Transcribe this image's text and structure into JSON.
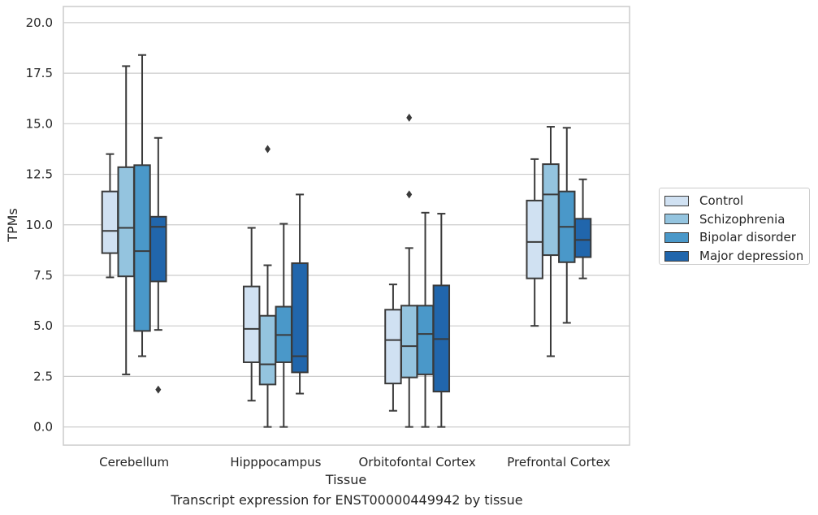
{
  "caption": "Transcript expression for ENST00000449942 by tissue",
  "chart_data": {
    "type": "boxplot",
    "xlabel": "Tissue",
    "ylabel": "TPMs",
    "ylim": [
      -0.9,
      20.8
    ],
    "yticks": [
      "0.0",
      "2.5",
      "5.0",
      "7.5",
      "10.0",
      "12.5",
      "15.0",
      "17.5",
      "20.0"
    ],
    "ytick_values": [
      0,
      2.5,
      5,
      7.5,
      10,
      12.5,
      15,
      17.5,
      20
    ],
    "grid": "horizontal",
    "legend_position": "right",
    "categories": [
      "Cerebellum",
      "Hipppocampus",
      "Orbitofontal Cortex",
      "Prefrontal Cortex"
    ],
    "series": [
      {
        "name": "Control",
        "color": "#d0e1f2",
        "boxes": [
          {
            "whislo": 7.4,
            "q1": 8.6,
            "med": 9.7,
            "q3": 11.65,
            "whishi": 13.5,
            "fliers": []
          },
          {
            "whislo": 1.3,
            "q1": 3.2,
            "med": 4.85,
            "q3": 6.95,
            "whishi": 9.85,
            "fliers": []
          },
          {
            "whislo": 0.8,
            "q1": 2.15,
            "med": 4.3,
            "q3": 5.8,
            "whishi": 7.05,
            "fliers": []
          },
          {
            "whislo": 5.0,
            "q1": 7.35,
            "med": 9.15,
            "q3": 11.2,
            "whishi": 13.25,
            "fliers": []
          }
        ]
      },
      {
        "name": "Schizophrenia",
        "color": "#94c4df",
        "boxes": [
          {
            "whislo": 2.6,
            "q1": 7.45,
            "med": 9.85,
            "q3": 12.85,
            "whishi": 17.85,
            "fliers": []
          },
          {
            "whislo": 0.0,
            "q1": 2.1,
            "med": 3.1,
            "q3": 5.5,
            "whishi": 8.0,
            "fliers": [
              13.75
            ]
          },
          {
            "whislo": 0.0,
            "q1": 2.45,
            "med": 4.0,
            "q3": 6.0,
            "whishi": 8.85,
            "fliers": [
              11.5,
              15.3
            ]
          },
          {
            "whislo": 3.5,
            "q1": 8.5,
            "med": 11.5,
            "q3": 13.0,
            "whishi": 14.85,
            "fliers": []
          }
        ]
      },
      {
        "name": "Bipolar disorder",
        "color": "#4a98c9",
        "boxes": [
          {
            "whislo": 3.5,
            "q1": 4.75,
            "med": 8.7,
            "q3": 12.95,
            "whishi": 18.4,
            "fliers": []
          },
          {
            "whislo": 0.0,
            "q1": 3.2,
            "med": 4.55,
            "q3": 5.95,
            "whishi": 10.05,
            "fliers": []
          },
          {
            "whislo": 0.0,
            "q1": 2.6,
            "med": 4.6,
            "q3": 6.0,
            "whishi": 10.6,
            "fliers": []
          },
          {
            "whislo": 5.15,
            "q1": 8.15,
            "med": 9.9,
            "q3": 11.65,
            "whishi": 14.8,
            "fliers": []
          }
        ]
      },
      {
        "name": "Major depression",
        "color": "#2166ac",
        "boxes": [
          {
            "whislo": 4.8,
            "q1": 7.2,
            "med": 9.9,
            "q3": 10.4,
            "whishi": 14.3,
            "fliers": [
              1.85
            ]
          },
          {
            "whislo": 1.65,
            "q1": 2.7,
            "med": 3.5,
            "q3": 8.1,
            "whishi": 11.5,
            "fliers": []
          },
          {
            "whislo": 0.0,
            "q1": 1.75,
            "med": 4.35,
            "q3": 7.0,
            "whishi": 10.55,
            "fliers": []
          },
          {
            "whislo": 7.35,
            "q1": 8.4,
            "med": 9.25,
            "q3": 10.3,
            "whishi": 12.25,
            "fliers": []
          }
        ]
      }
    ]
  }
}
